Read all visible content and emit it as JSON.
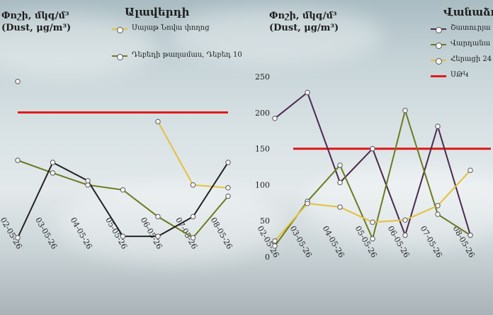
{
  "chart_data": [
    {
      "type": "line",
      "title": "Ալավերդի",
      "unit_label": [
        "Փոշի, մկգ/մ³",
        "(Dust, μg/m³)"
      ],
      "categories": [
        "02-05-26",
        "03-05-26",
        "04-05-26",
        "05-05-26",
        "06-05-26",
        "07-05-26",
        "08-05-26"
      ],
      "ylim": [
        0,
        250
      ],
      "y_ticks_visible": false,
      "series": [
        {
          "name": "Սայաթ Նովա փողոց",
          "color": "#e2c13a",
          "values": [
            null,
            null,
            null,
            null,
            180,
            90,
            86
          ]
        },
        {
          "name": "Դեբեդի թաղամաս, Դեբեդ 10",
          "color": "#6b7a21",
          "values": [
            125,
            107,
            90,
            83,
            45,
            15,
            74
          ]
        },
        {
          "name": "",
          "color": "#222222",
          "values": [
            15,
            122,
            96,
            17,
            17,
            45,
            122
          ]
        }
      ],
      "extra_points": [
        {
          "x": "02-05-26",
          "y": 237
        }
      ],
      "limit_line": {
        "value": 193,
        "color": "#e11b1b"
      }
    },
    {
      "type": "line",
      "title": "Վանաձոր",
      "unit_label": [
        "Փոշի, մկգ/մ³",
        "(Dust, μg/m³)"
      ],
      "categories": [
        "02-05-26",
        "03-05-26",
        "04-05-26",
        "05-05-26",
        "06-05-26",
        "07-05-26",
        "08-05-26"
      ],
      "ylim": [
        0,
        250
      ],
      "y_ticks": [
        0,
        50,
        100,
        150,
        200,
        250
      ],
      "series": [
        {
          "name": "Շատուրյա",
          "color": "#4a2a4f",
          "values": [
            192,
            228,
            103,
            150,
            30,
            181,
            30
          ]
        },
        {
          "name": "Վարդանա",
          "color": "#6b7a21",
          "values": [
            15,
            77,
            127,
            25,
            203,
            59,
            30
          ]
        },
        {
          "name": "Հերացի 24",
          "color": "#e2c13a",
          "values": [
            22,
            74,
            69,
            48,
            51,
            71,
            120
          ]
        }
      ],
      "limit_line": {
        "name": "ՍԹԿ",
        "value": 150,
        "color": "#e11b1b"
      }
    }
  ]
}
